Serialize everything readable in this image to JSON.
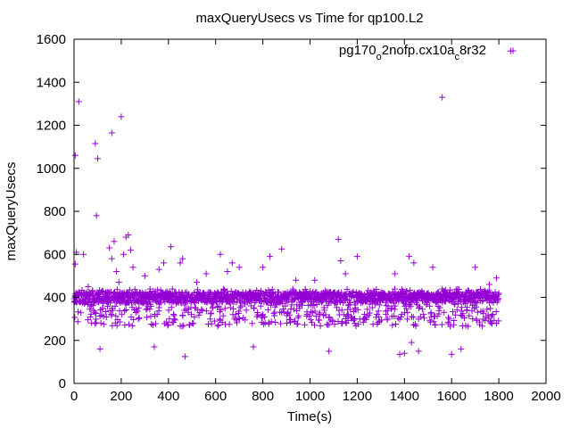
{
  "chart_data": {
    "type": "scatter",
    "title": "maxQueryUsecs vs Time for qp100.L2",
    "xlabel": "Time(s)",
    "ylabel": "maxQueryUsecs",
    "xlim": [
      0,
      2000
    ],
    "ylim": [
      0,
      1600
    ],
    "x_ticks": [
      "0",
      "200",
      "400",
      "600",
      "800",
      "1000",
      "1200",
      "1400",
      "1600",
      "1800",
      "2000"
    ],
    "y_ticks": [
      "0",
      "200",
      "400",
      "600",
      "800",
      "1000",
      "1200",
      "1400",
      "1600"
    ],
    "grid": false,
    "legend_position": "top-right",
    "marker": "+",
    "colors": {
      "series": "#9400d3",
      "axis": "#000000",
      "background": "#ffffff"
    },
    "series": [
      {
        "name_parts": [
          "pg170",
          "o",
          "2nofp.cx10a",
          "c",
          "8r32"
        ],
        "name_subscripts": [
          1,
          3
        ],
        "dense_band": {
          "x_range": [
            0,
            1800
          ],
          "x_step": 1,
          "typical_low": 265,
          "typical_high": 440,
          "core_low": 375,
          "core_high": 425
        },
        "points": [
          [
            5,
            1060
          ],
          [
            20,
            1310
          ],
          [
            90,
            1115
          ],
          [
            95,
            780
          ],
          [
            100,
            1045
          ],
          [
            160,
            1165
          ],
          [
            200,
            1240
          ],
          [
            10,
            610
          ],
          [
            5,
            555
          ],
          [
            40,
            600
          ],
          [
            60,
            450
          ],
          [
            110,
            160
          ],
          [
            120,
            430
          ],
          [
            140,
            420
          ],
          [
            150,
            630
          ],
          [
            160,
            580
          ],
          [
            170,
            660
          ],
          [
            180,
            520
          ],
          [
            190,
            470
          ],
          [
            210,
            600
          ],
          [
            220,
            680
          ],
          [
            230,
            690
          ],
          [
            240,
            620
          ],
          [
            250,
            540
          ],
          [
            300,
            500
          ],
          [
            340,
            170
          ],
          [
            360,
            530
          ],
          [
            380,
            560
          ],
          [
            410,
            635
          ],
          [
            450,
            560
          ],
          [
            460,
            580
          ],
          [
            470,
            125
          ],
          [
            520,
            470
          ],
          [
            560,
            510
          ],
          [
            620,
            600
          ],
          [
            650,
            520
          ],
          [
            670,
            560
          ],
          [
            700,
            540
          ],
          [
            760,
            170
          ],
          [
            800,
            540
          ],
          [
            830,
            590
          ],
          [
            880,
            625
          ],
          [
            940,
            480
          ],
          [
            1020,
            480
          ],
          [
            1080,
            150
          ],
          [
            1120,
            670
          ],
          [
            1130,
            570
          ],
          [
            1150,
            510
          ],
          [
            1200,
            590
          ],
          [
            1260,
            420
          ],
          [
            1360,
            510
          ],
          [
            1380,
            135
          ],
          [
            1400,
            140
          ],
          [
            1420,
            590
          ],
          [
            1430,
            190
          ],
          [
            1440,
            560
          ],
          [
            1460,
            150
          ],
          [
            1520,
            540
          ],
          [
            1560,
            1330
          ],
          [
            1600,
            135
          ],
          [
            1640,
            160
          ],
          [
            1700,
            540
          ],
          [
            1760,
            460
          ],
          [
            1790,
            490
          ],
          [
            1850,
            1545
          ]
        ]
      }
    ]
  }
}
